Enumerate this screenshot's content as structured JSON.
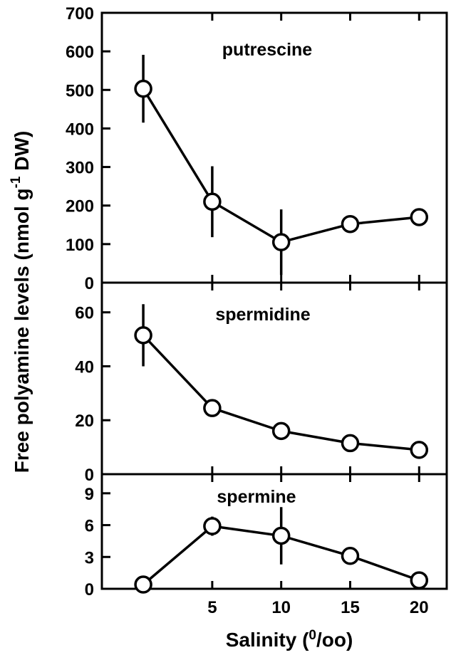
{
  "chart_data": {
    "type": "line",
    "ylabel": "Free polyamine levels (nmol g-1 DW)",
    "xlabel": "Salinity (0/00)",
    "x_ticks": [
      5,
      10,
      15,
      20
    ],
    "xlim": [
      -3,
      22
    ],
    "panels": [
      {
        "title": "putrescine",
        "ylim": [
          0,
          700
        ],
        "y_ticks": [
          0,
          100,
          200,
          300,
          400,
          500,
          600,
          700
        ],
        "x": [
          0,
          5,
          10,
          15,
          20
        ],
        "values": [
          503,
          210,
          105,
          152,
          170
        ],
        "errors": [
          88,
          92,
          85,
          12,
          10
        ]
      },
      {
        "title": "spermidine",
        "ylim": [
          0,
          71
        ],
        "y_ticks": [
          0,
          20,
          40,
          60
        ],
        "x": [
          0,
          5,
          10,
          15,
          20
        ],
        "values": [
          51.5,
          24.5,
          16,
          11.5,
          9
        ],
        "errors": [
          11.5,
          1.5,
          1.5,
          1.2,
          1
        ]
      },
      {
        "title": "spermine",
        "ylim": [
          0,
          10.8
        ],
        "y_ticks": [
          0,
          3,
          6,
          9
        ],
        "x": [
          0,
          5,
          10,
          15,
          20
        ],
        "values": [
          0.4,
          5.9,
          5,
          3.1,
          0.8
        ],
        "errors": [
          0.2,
          0.9,
          2.7,
          0.3,
          0.2
        ]
      }
    ]
  }
}
